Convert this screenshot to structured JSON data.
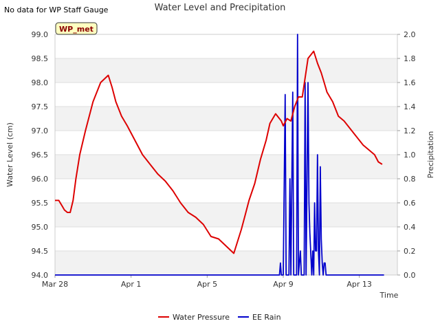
{
  "chart_data": {
    "type": "line",
    "title": "Water Level and Precipitation",
    "note": "No data for WP Staff Gauge",
    "station_badge": "WP_met",
    "xlabel": "Time",
    "ylabel_left": "Water Level (cm)",
    "ylabel_right": "Precipitation",
    "xlim": [
      "Mar 28",
      "Apr 15"
    ],
    "ylim_left": [
      94.0,
      99.0
    ],
    "ylim_right": [
      0.0,
      2.0
    ],
    "x_ticks": [
      {
        "label": "Mar 28",
        "value": 0
      },
      {
        "label": "Apr 1",
        "value": 4
      },
      {
        "label": "Apr 5",
        "value": 8
      },
      {
        "label": "Apr 9",
        "value": 12
      },
      {
        "label": "Apr 13",
        "value": 16
      }
    ],
    "y_ticks_left": [
      "94.0",
      "94.5",
      "95.0",
      "95.5",
      "96.0",
      "96.5",
      "97.0",
      "97.5",
      "98.0",
      "98.5",
      "99.0"
    ],
    "y_ticks_right": [
      "0.0",
      "0.2",
      "0.4",
      "0.6",
      "0.8",
      "1.0",
      "1.2",
      "1.4",
      "1.6",
      "1.8",
      "2.0"
    ],
    "grid": "horizontal, alternating bands",
    "legend": "bottom-center",
    "series": [
      {
        "name": "Water Pressure",
        "axis": "left",
        "color": "#dd0000",
        "x": [
          0.0,
          0.2,
          0.35,
          0.5,
          0.65,
          0.8,
          0.95,
          1.1,
          1.3,
          1.6,
          2.0,
          2.4,
          2.8,
          3.0,
          3.2,
          3.5,
          3.8,
          4.2,
          4.6,
          5.0,
          5.4,
          5.8,
          6.2,
          6.6,
          7.0,
          7.4,
          7.8,
          8.2,
          8.6,
          9.0,
          9.4,
          9.8,
          10.0,
          10.2,
          10.5,
          10.8,
          11.1,
          11.3,
          11.6,
          11.9,
          12.0,
          12.2,
          12.4,
          12.6,
          12.8,
          13.0,
          13.3,
          13.6,
          13.8,
          14.0,
          14.15,
          14.3,
          14.6,
          14.9,
          15.2,
          15.5,
          15.8,
          16.2,
          16.5,
          16.8,
          17.0,
          17.2
        ],
        "y": [
          95.55,
          95.55,
          95.45,
          95.35,
          95.3,
          95.3,
          95.55,
          96.0,
          96.5,
          97.0,
          97.6,
          98.0,
          98.15,
          97.9,
          97.6,
          97.3,
          97.1,
          96.8,
          96.5,
          96.3,
          96.1,
          95.95,
          95.75,
          95.5,
          95.3,
          95.2,
          95.05,
          94.8,
          94.75,
          94.6,
          94.45,
          94.95,
          95.25,
          95.55,
          95.9,
          96.4,
          96.8,
          97.15,
          97.35,
          97.2,
          97.1,
          97.25,
          97.2,
          97.5,
          97.7,
          97.7,
          98.5,
          98.65,
          98.4,
          98.2,
          98.0,
          97.8,
          97.6,
          97.3,
          97.2,
          97.05,
          96.9,
          96.7,
          96.6,
          96.5,
          96.35,
          96.3
        ]
      },
      {
        "name": "EE Rain",
        "axis": "right",
        "color": "#0000cc",
        "x": [
          0.0,
          11.8,
          11.85,
          11.9,
          11.95,
          12.0,
          12.1,
          12.15,
          12.2,
          12.3,
          12.35,
          12.4,
          12.5,
          12.55,
          12.6,
          12.7,
          12.75,
          12.8,
          12.9,
          12.95,
          13.0,
          13.1,
          13.15,
          13.2,
          13.3,
          13.35,
          13.4,
          13.5,
          13.55,
          13.6,
          13.65,
          13.7,
          13.75,
          13.8,
          13.85,
          13.9,
          13.95,
          14.0,
          14.05,
          14.1,
          14.15,
          14.2,
          14.25,
          14.3,
          14.35,
          17.3
        ],
        "y": [
          0.0,
          0.0,
          0.1,
          0.0,
          0.0,
          0.0,
          1.5,
          0.0,
          0.0,
          0.0,
          0.8,
          0.0,
          1.52,
          0.0,
          0.0,
          0.0,
          2.0,
          0.0,
          0.2,
          0.0,
          0.0,
          0.0,
          1.6,
          0.0,
          1.6,
          0.6,
          0.35,
          0.0,
          0.2,
          0.0,
          0.6,
          0.2,
          0.2,
          1.0,
          0.2,
          0.0,
          0.9,
          0.3,
          0.1,
          0.0,
          0.1,
          0.1,
          0.0,
          0.0,
          0.0,
          0.0
        ]
      }
    ]
  }
}
